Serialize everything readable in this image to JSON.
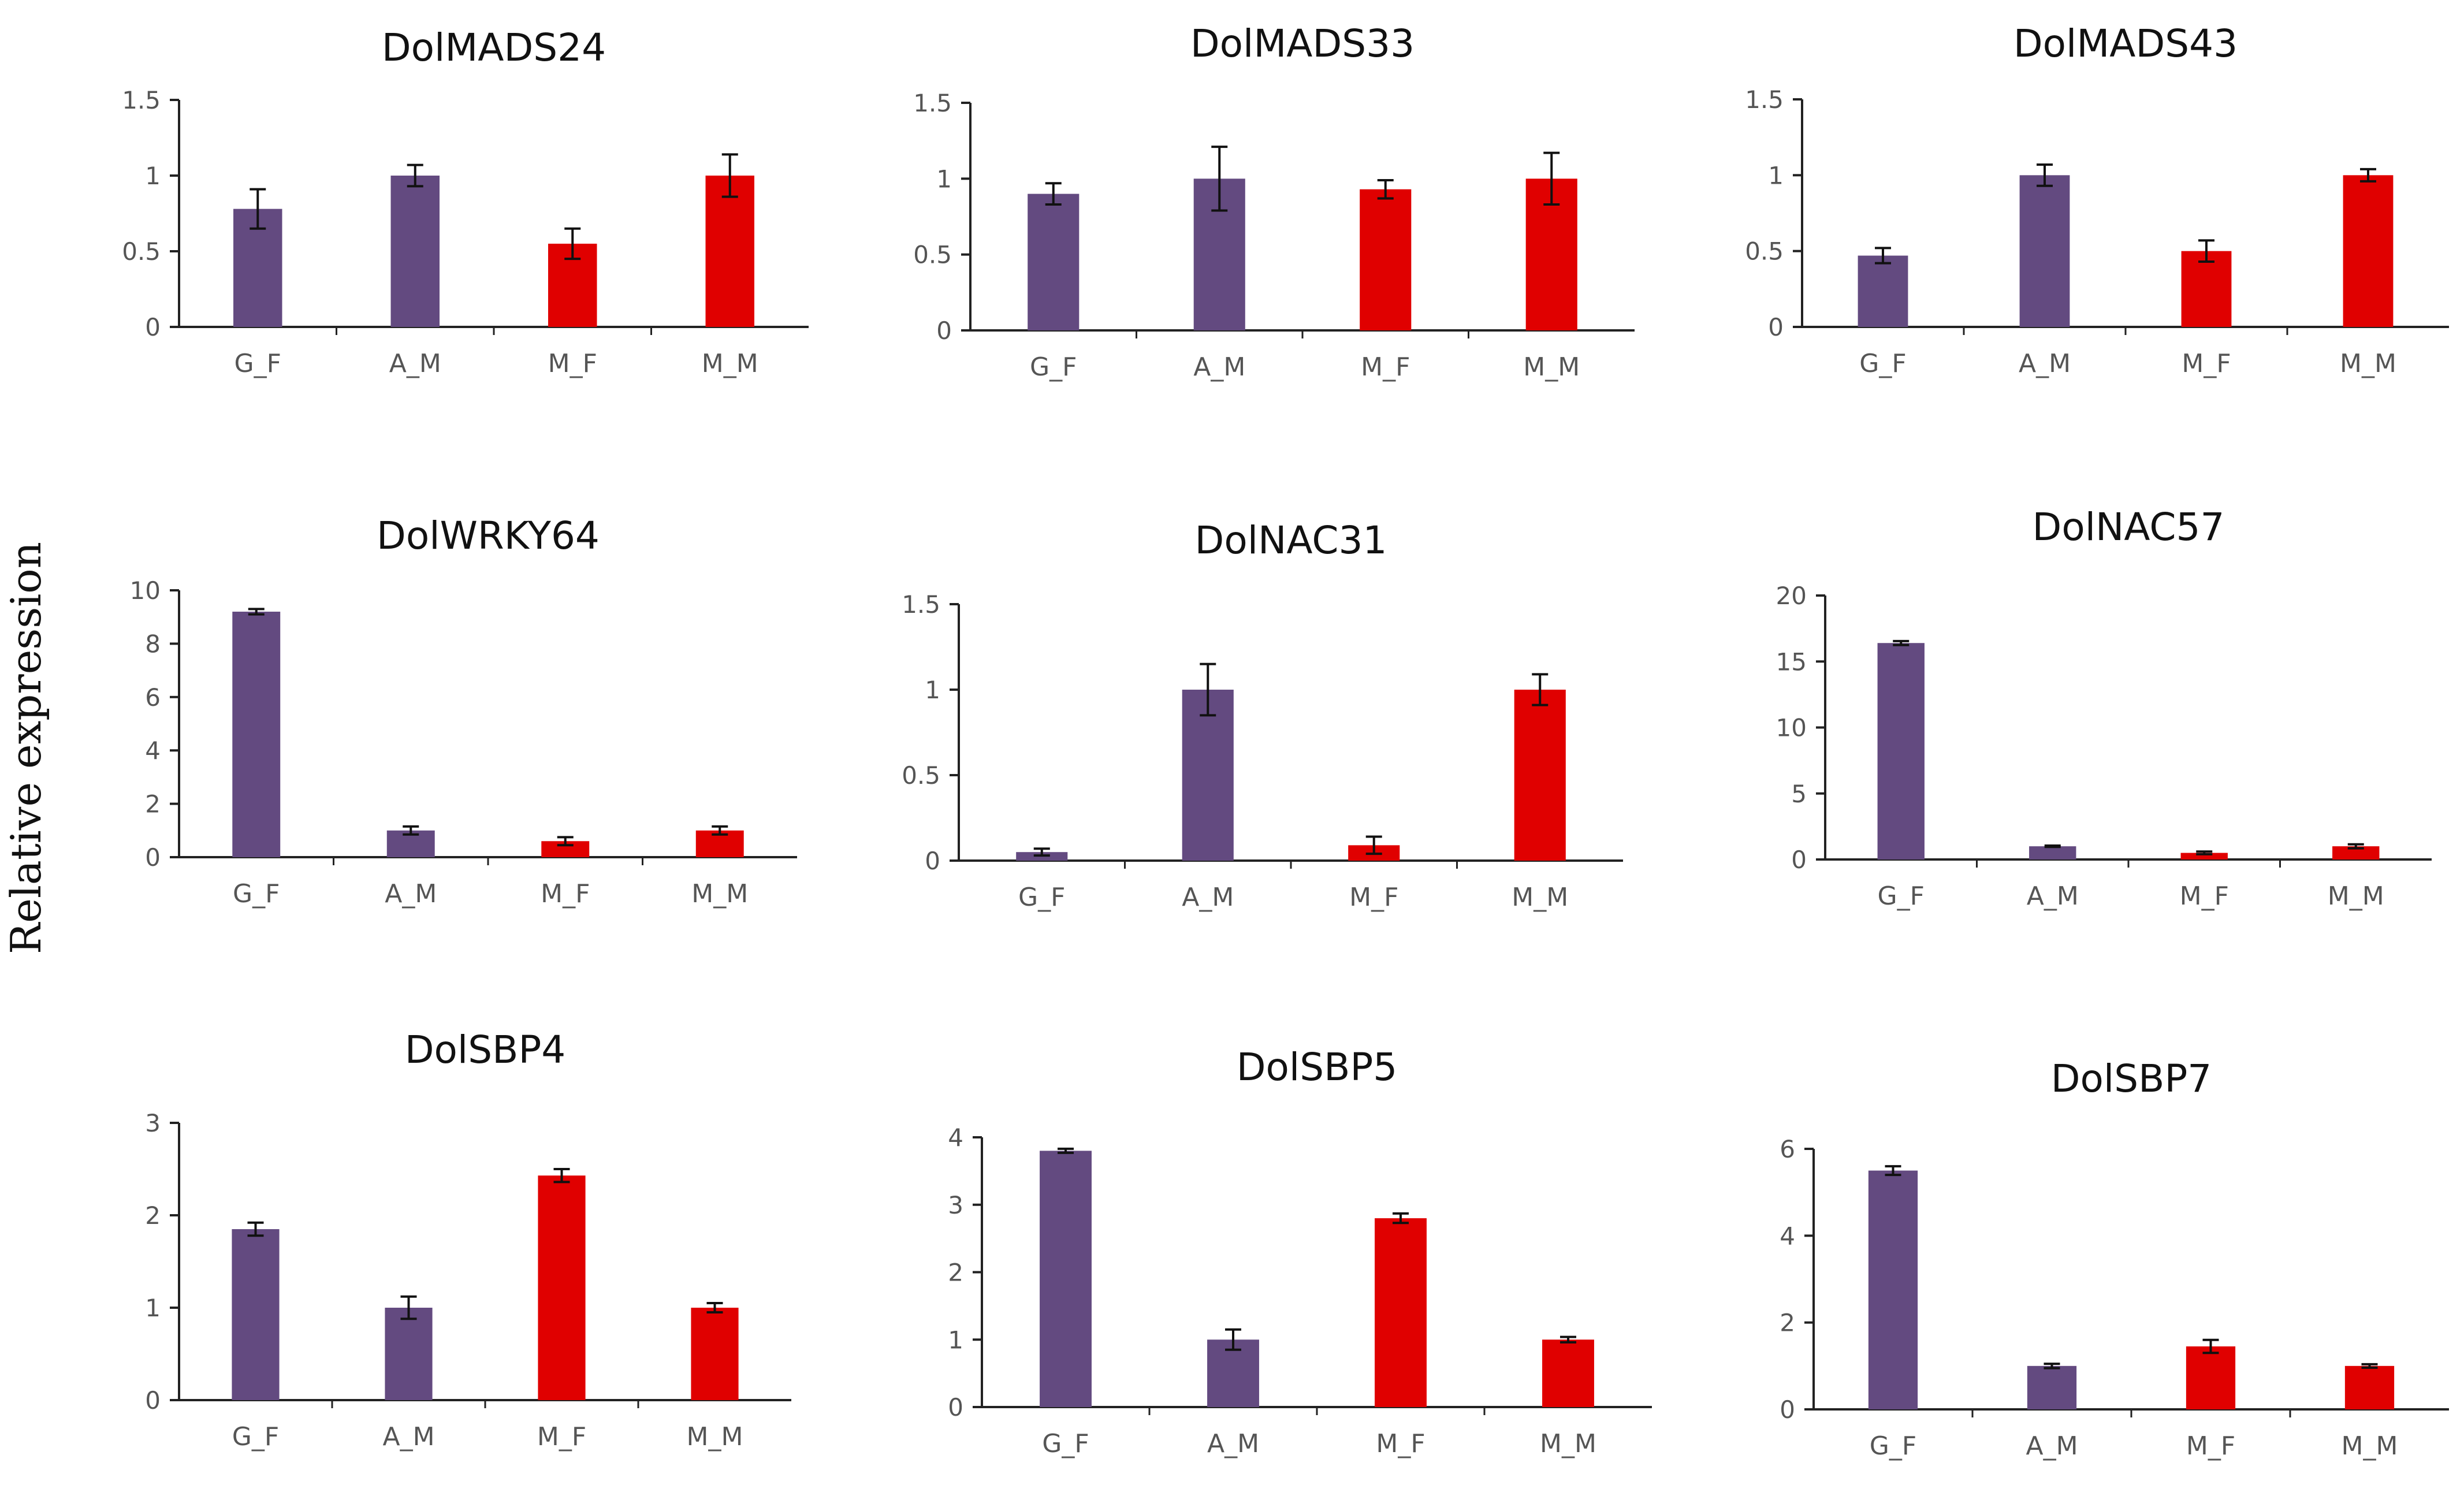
{
  "figure": {
    "ylabel": "Relative expression",
    "colors": {
      "group1": "#634a80",
      "group2": "#e00000",
      "axis": "#222222",
      "error": "#111111"
    }
  },
  "chart_data": [
    {
      "type": "bar",
      "title": "DolMADS24",
      "categories": [
        "G_F",
        "A_M",
        "M_F",
        "M_M"
      ],
      "values": [
        0.78,
        1.0,
        0.55,
        1.0
      ],
      "errors": [
        0.13,
        0.07,
        0.1,
        0.14
      ],
      "ylim": [
        0,
        1.5
      ],
      "yticks": [
        "0",
        "0.5",
        "1",
        "1.5"
      ],
      "grid": false
    },
    {
      "type": "bar",
      "title": "DolMADS33",
      "categories": [
        "G_F",
        "A_M",
        "M_F",
        "M_M"
      ],
      "values": [
        0.9,
        1.0,
        0.93,
        1.0
      ],
      "errors": [
        0.07,
        0.21,
        0.06,
        0.17
      ],
      "ylim": [
        0,
        1.5
      ],
      "yticks": [
        "0",
        "0.5",
        "1",
        "1.5"
      ],
      "grid": false
    },
    {
      "type": "bar",
      "title": "DolMADS43",
      "categories": [
        "G_F",
        "A_M",
        "M_F",
        "M_M"
      ],
      "values": [
        0.47,
        1.0,
        0.5,
        1.0
      ],
      "errors": [
        0.05,
        0.07,
        0.07,
        0.04
      ],
      "ylim": [
        0,
        1.5
      ],
      "yticks": [
        "0",
        "0.5",
        "1",
        "1.5"
      ],
      "grid": false
    },
    {
      "type": "bar",
      "title": "DolWRKY64",
      "categories": [
        "G_F",
        "A_M",
        "M_F",
        "M_M"
      ],
      "values": [
        9.2,
        1.0,
        0.6,
        1.0
      ],
      "errors": [
        0.1,
        0.15,
        0.15,
        0.15
      ],
      "ylim": [
        0,
        10
      ],
      "yticks": [
        "0",
        "2",
        "4",
        "6",
        "8",
        "10"
      ],
      "grid": false
    },
    {
      "type": "bar",
      "title": "DolNAC31",
      "categories": [
        "G_F",
        "A_M",
        "M_F",
        "M_M"
      ],
      "values": [
        0.05,
        1.0,
        0.09,
        1.0
      ],
      "errors": [
        0.02,
        0.15,
        0.05,
        0.09
      ],
      "ylim": [
        0,
        1.5
      ],
      "yticks": [
        "0",
        "0.5",
        "1",
        "1.5"
      ],
      "grid": false
    },
    {
      "type": "bar",
      "title": "DolNAC57",
      "categories": [
        "G_F",
        "A_M",
        "M_F",
        "M_M"
      ],
      "values": [
        16.4,
        1.0,
        0.5,
        1.0
      ],
      "errors": [
        0.15,
        0.05,
        0.1,
        0.15
      ],
      "ylim": [
        0,
        20
      ],
      "yticks": [
        "0",
        "5",
        "10",
        "15",
        "20"
      ],
      "grid": false
    },
    {
      "type": "bar",
      "title": "DolSBP4",
      "categories": [
        "G_F",
        "A_M",
        "M_F",
        "M_M"
      ],
      "values": [
        1.85,
        1.0,
        2.43,
        1.0
      ],
      "errors": [
        0.07,
        0.12,
        0.07,
        0.05
      ],
      "ylim": [
        0,
        3
      ],
      "yticks": [
        "0",
        "1",
        "2",
        "3"
      ],
      "grid": false
    },
    {
      "type": "bar",
      "title": "DolSBP5",
      "categories": [
        "G_F",
        "A_M",
        "M_F",
        "M_M"
      ],
      "values": [
        3.8,
        1.0,
        2.8,
        1.0
      ],
      "errors": [
        0.03,
        0.15,
        0.07,
        0.04
      ],
      "ylim": [
        0,
        4
      ],
      "yticks": [
        "0",
        "1",
        "2",
        "3",
        "4"
      ],
      "grid": false
    },
    {
      "type": "bar",
      "title": "DolSBP7",
      "categories": [
        "G_F",
        "A_M",
        "M_F",
        "M_M"
      ],
      "values": [
        5.5,
        1.0,
        1.45,
        1.0
      ],
      "errors": [
        0.1,
        0.05,
        0.15,
        0.04
      ],
      "ylim": [
        0,
        6
      ],
      "yticks": [
        "0",
        "2",
        "4",
        "6"
      ],
      "grid": false
    }
  ]
}
